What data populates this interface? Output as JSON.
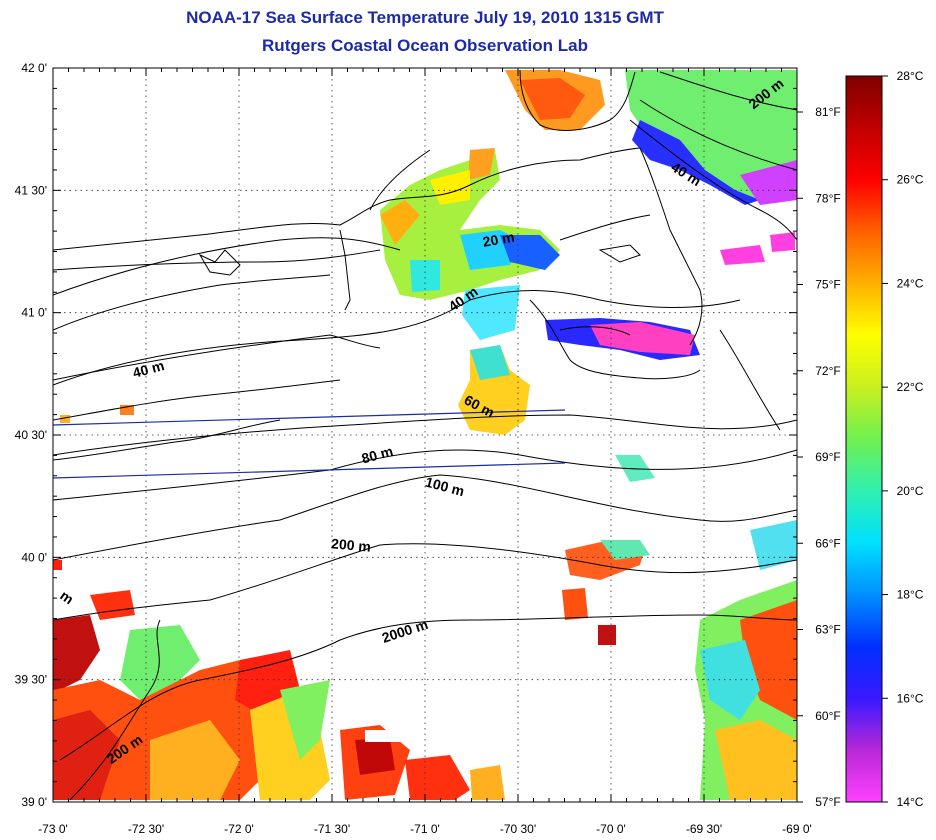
{
  "title": {
    "line1": "NOAA-17 Sea Surface Temperature July 19, 2010 1315 GMT",
    "line2": "Rutgers Coastal Ocean Observation Lab"
  },
  "map": {
    "lon_labels": [
      "-73 0'",
      "-72 30'",
      "-72 0'",
      "-71 30'",
      "-71 0'",
      "-70 30'",
      "-70 0'",
      "-69 30'",
      "-69 0'"
    ],
    "lat_labels": [
      "42 0'",
      "41 30'",
      "41 0'",
      "40 30'",
      "40 0'",
      "39 30'",
      "39 0'"
    ],
    "contours": [
      {
        "label": "200 m",
        "lon": -69.15,
        "lat": 41.88,
        "angle": -38
      },
      {
        "label": "40 m",
        "lon": -69.61,
        "lat": 41.55,
        "angle": 32
      },
      {
        "label": "20 m",
        "lon": -70.6,
        "lat": 41.28,
        "angle": -10
      },
      {
        "label": "40 m",
        "lon": -70.78,
        "lat": 41.04,
        "angle": -35
      },
      {
        "label": "40 m",
        "lon": -72.48,
        "lat": 40.75,
        "angle": -15
      },
      {
        "label": "60 m",
        "lon": -70.72,
        "lat": 40.6,
        "angle": 28
      },
      {
        "label": "80 m",
        "lon": -71.25,
        "lat": 40.4,
        "angle": -15
      },
      {
        "label": "100 m",
        "lon": -70.9,
        "lat": 40.27,
        "angle": 15
      },
      {
        "label": "200 m",
        "lon": -71.4,
        "lat": 40.03,
        "angle": 5
      },
      {
        "label": "2000 m",
        "lon": -71.1,
        "lat": 39.68,
        "angle": -18
      },
      {
        "label": "200 m",
        "lon": -72.6,
        "lat": 39.2,
        "angle": -35
      },
      {
        "label": "m",
        "lon": -72.94,
        "lat": 39.82,
        "angle": 35
      }
    ]
  },
  "colorbar": {
    "celsius_labels": [
      "28°C",
      "26°C",
      "24°C",
      "22°C",
      "20°C",
      "18°C",
      "16°C",
      "14°C"
    ],
    "fahrenheit_labels": [
      "81°F",
      "78°F",
      "75°F",
      "72°F",
      "69°F",
      "66°F",
      "63°F",
      "60°F",
      "57°F"
    ],
    "stops": [
      "#ff40ff",
      "#b828d8",
      "#3818ff",
      "#0030ff",
      "#0090ff",
      "#00e0ff",
      "#30f0b0",
      "#70f050",
      "#c8f020",
      "#ffff00",
      "#ffb000",
      "#ff6000",
      "#ff0000",
      "#c00000",
      "#800000"
    ]
  }
}
